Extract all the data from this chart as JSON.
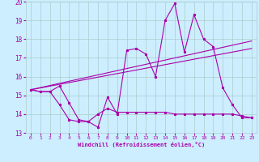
{
  "xlabel": "Windchill (Refroidissement éolien,°C)",
  "background_color": "#cceeff",
  "grid_color": "#aacccc",
  "line_color": "#aa00aa",
  "xlim": [
    -0.5,
    23.5
  ],
  "ylim": [
    13,
    20
  ],
  "yticks": [
    13,
    14,
    15,
    16,
    17,
    18,
    19,
    20
  ],
  "xticks": [
    0,
    1,
    2,
    3,
    4,
    5,
    6,
    7,
    8,
    9,
    10,
    11,
    12,
    13,
    14,
    15,
    16,
    17,
    18,
    19,
    20,
    21,
    22,
    23
  ],
  "line1_x": [
    0,
    1,
    2,
    3,
    4,
    5,
    6,
    7,
    8,
    9,
    10,
    11,
    12,
    13,
    14,
    15,
    16,
    17,
    18,
    19,
    20,
    21,
    22,
    23
  ],
  "line1_y": [
    15.3,
    15.2,
    15.2,
    15.5,
    14.6,
    13.7,
    13.6,
    13.3,
    14.9,
    14.0,
    17.4,
    17.5,
    17.2,
    16.0,
    19.0,
    19.9,
    17.3,
    19.3,
    18.0,
    17.6,
    15.4,
    14.5,
    13.8,
    13.8
  ],
  "line2_x": [
    0,
    1,
    2,
    3,
    4,
    5,
    6,
    7,
    8,
    9,
    10,
    11,
    12,
    13,
    14,
    15,
    16,
    17,
    18,
    19,
    20,
    21,
    22,
    23
  ],
  "line2_y": [
    15.3,
    15.2,
    15.2,
    14.5,
    13.7,
    13.6,
    13.6,
    14.0,
    14.3,
    14.1,
    14.1,
    14.1,
    14.1,
    14.1,
    14.1,
    14.0,
    14.0,
    14.0,
    14.0,
    14.0,
    14.0,
    14.0,
    13.9,
    13.8
  ],
  "line3_x": [
    0,
    23
  ],
  "line3_y": [
    15.3,
    17.9
  ],
  "line4_x": [
    0,
    23
  ],
  "line4_y": [
    15.3,
    17.5
  ]
}
